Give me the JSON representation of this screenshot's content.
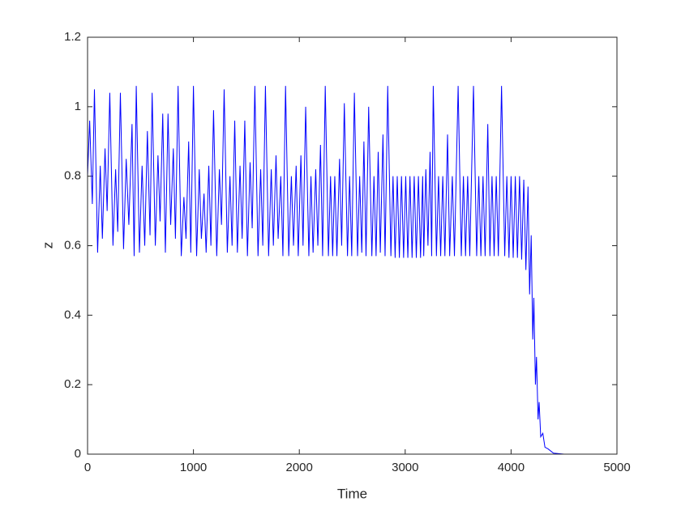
{
  "chart_data": {
    "type": "line",
    "x_label": "Time",
    "y_label": "z",
    "xlim": [
      0,
      5000
    ],
    "ylim": [
      0,
      1.2
    ],
    "xticks": [
      0,
      1000,
      2000,
      3000,
      4000,
      5000
    ],
    "yticks": [
      0,
      0.2,
      0.4,
      0.6,
      0.8,
      1,
      1.2
    ],
    "series": [
      {
        "name": "z",
        "color": "#0000ff",
        "x": [
          0,
          20,
          45,
          65,
          95,
          120,
          140,
          165,
          185,
          210,
          240,
          265,
          285,
          310,
          340,
          365,
          390,
          420,
          440,
          460,
          490,
          515,
          540,
          565,
          590,
          610,
          640,
          665,
          685,
          710,
          735,
          760,
          785,
          810,
          830,
          855,
          885,
          910,
          930,
          955,
          975,
          1000,
          1030,
          1055,
          1075,
          1100,
          1120,
          1145,
          1165,
          1190,
          1220,
          1245,
          1265,
          1290,
          1320,
          1345,
          1365,
          1390,
          1415,
          1440,
          1460,
          1485,
          1510,
          1535,
          1555,
          1580,
          1610,
          1635,
          1655,
          1680,
          1710,
          1735,
          1755,
          1780,
          1800,
          1825,
          1845,
          1870,
          1900,
          1925,
          1945,
          1970,
          1990,
          2015,
          2035,
          2060,
          2090,
          2110,
          2130,
          2155,
          2175,
          2200,
          2220,
          2245,
          2275,
          2295,
          2315,
          2335,
          2355,
          2380,
          2400,
          2425,
          2455,
          2475,
          2495,
          2520,
          2550,
          2570,
          2590,
          2610,
          2630,
          2655,
          2685,
          2705,
          2725,
          2745,
          2765,
          2790,
          2810,
          2835,
          2865,
          2885,
          2905,
          2925,
          2945,
          2965,
          2985,
          3005,
          3025,
          3045,
          3065,
          3085,
          3105,
          3125,
          3145,
          3165,
          3175,
          3195,
          3215,
          3235,
          3250,
          3265,
          3295,
          3315,
          3335,
          3355,
          3375,
          3400,
          3420,
          3445,
          3465,
          3500,
          3530,
          3550,
          3570,
          3590,
          3610,
          3645,
          3675,
          3695,
          3715,
          3735,
          3755,
          3780,
          3800,
          3820,
          3840,
          3860,
          3880,
          3910,
          3940,
          3960,
          3980,
          4000,
          4020,
          4040,
          4060,
          4080,
          4100,
          4120,
          4140,
          4160,
          4175,
          4190,
          4205,
          4215,
          4230,
          4240,
          4255,
          4265,
          4280,
          4300,
          4320,
          4350,
          4400,
          4500,
          4900
        ],
        "values": [
          0.8,
          0.96,
          0.72,
          1.05,
          0.58,
          0.83,
          0.62,
          0.88,
          0.7,
          1.04,
          0.6,
          0.82,
          0.64,
          1.04,
          0.59,
          0.85,
          0.66,
          0.95,
          0.57,
          1.06,
          0.58,
          0.83,
          0.6,
          0.93,
          0.63,
          1.04,
          0.6,
          0.86,
          0.67,
          0.98,
          0.58,
          0.98,
          0.66,
          0.88,
          0.62,
          1.06,
          0.57,
          0.74,
          0.62,
          0.9,
          0.58,
          1.06,
          0.57,
          0.82,
          0.62,
          0.75,
          0.58,
          0.83,
          0.6,
          0.99,
          0.57,
          0.82,
          0.66,
          1.05,
          0.58,
          0.8,
          0.6,
          0.96,
          0.58,
          0.83,
          0.62,
          0.96,
          0.57,
          0.84,
          0.65,
          1.06,
          0.57,
          0.82,
          0.6,
          1.06,
          0.57,
          0.82,
          0.6,
          0.86,
          0.62,
          0.8,
          0.57,
          1.06,
          0.57,
          0.8,
          0.6,
          0.83,
          0.57,
          0.86,
          0.6,
          1.0,
          0.57,
          0.8,
          0.58,
          0.82,
          0.6,
          0.89,
          0.57,
          1.06,
          0.57,
          0.8,
          0.57,
          0.8,
          0.57,
          0.85,
          0.6,
          1.01,
          0.57,
          0.8,
          0.57,
          1.04,
          0.57,
          0.8,
          0.58,
          0.9,
          0.57,
          1.0,
          0.57,
          0.8,
          0.57,
          0.87,
          0.58,
          0.92,
          0.57,
          1.06,
          0.57,
          0.8,
          0.565,
          0.8,
          0.565,
          0.8,
          0.565,
          0.8,
          0.565,
          0.8,
          0.565,
          0.8,
          0.565,
          0.8,
          0.565,
          0.8,
          0.57,
          0.82,
          0.6,
          0.87,
          0.57,
          1.06,
          0.57,
          0.8,
          0.57,
          0.8,
          0.57,
          0.92,
          0.57,
          0.8,
          0.57,
          1.06,
          0.57,
          0.8,
          0.57,
          0.8,
          0.57,
          1.06,
          0.57,
          0.8,
          0.57,
          0.8,
          0.57,
          0.95,
          0.57,
          0.8,
          0.57,
          0.8,
          0.57,
          1.06,
          0.57,
          0.8,
          0.565,
          0.8,
          0.565,
          0.8,
          0.565,
          0.8,
          0.56,
          0.79,
          0.53,
          0.77,
          0.46,
          0.63,
          0.33,
          0.45,
          0.2,
          0.28,
          0.1,
          0.15,
          0.05,
          0.06,
          0.02,
          0.015,
          0.003,
          0,
          0
        ]
      }
    ]
  }
}
